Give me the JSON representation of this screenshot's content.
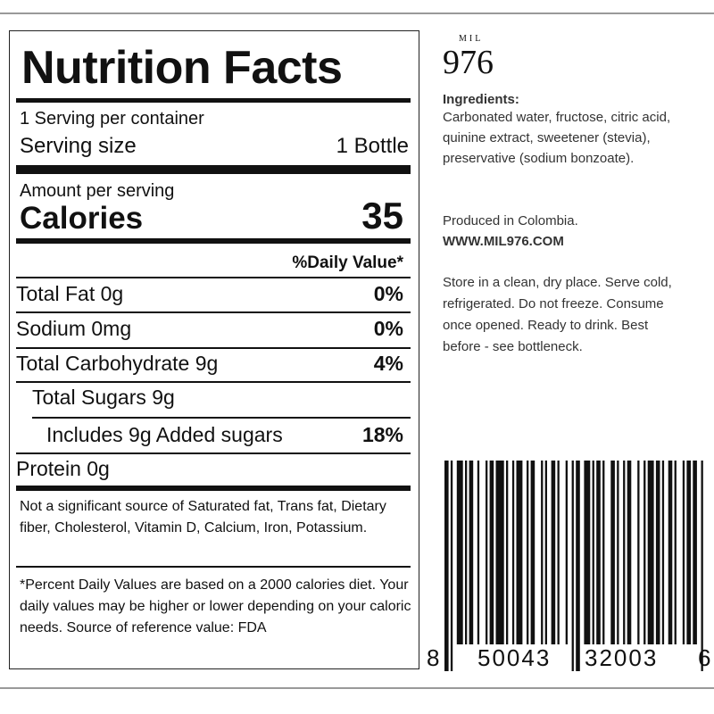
{
  "nutrition": {
    "title": "Nutrition Facts",
    "servings": "1 Serving per container",
    "serving_size_label": "Serving size",
    "serving_size_value": "1 Bottle",
    "amount_per_serving": "Amount per serving",
    "calories_label": "Calories",
    "calories_value": "35",
    "daily_value_header": "%Daily Value*",
    "rows": [
      {
        "label": "Total Fat 0g",
        "dv": "0%"
      },
      {
        "label": "Sodium 0mg",
        "dv": "0%"
      },
      {
        "label": "Total Carbohydrate 9g",
        "dv": "4%"
      },
      {
        "label": "Total Sugars 9g"
      },
      {
        "label": "Includes 9g Added sugars",
        "dv": "18%"
      },
      {
        "label": "Protein 0g"
      }
    ],
    "footnote_1": "Not a significant source of Saturated fat, Trans fat, Dietary fiber,  Cholesterol, Vitamin D, Calcium, Iron, Potassium.",
    "footnote_2": "*Percent Daily Values are based on a 2000 calories diet. Your daily values may be higher or lower depending on your caloric needs. Source of reference value: FDA"
  },
  "brand": {
    "small": "MIL",
    "number": "976"
  },
  "info": {
    "ingredients_heading": "Ingredients:",
    "ingredients": "Carbonated water, fructose, citric acid, quinine extract, sweetener (stevia), preservative (sodium bonzoate).",
    "produced": "Produced in Colombia.",
    "website": "WWW.MIL976.COM",
    "storage": "Store in a clean, dry place. Serve cold, refrigerated. Do not freeze. Consume once opened. Ready to drink. Best before - see bottleneck."
  },
  "barcode": {
    "digits": [
      "8",
      "50043",
      "32003",
      "6"
    ]
  }
}
